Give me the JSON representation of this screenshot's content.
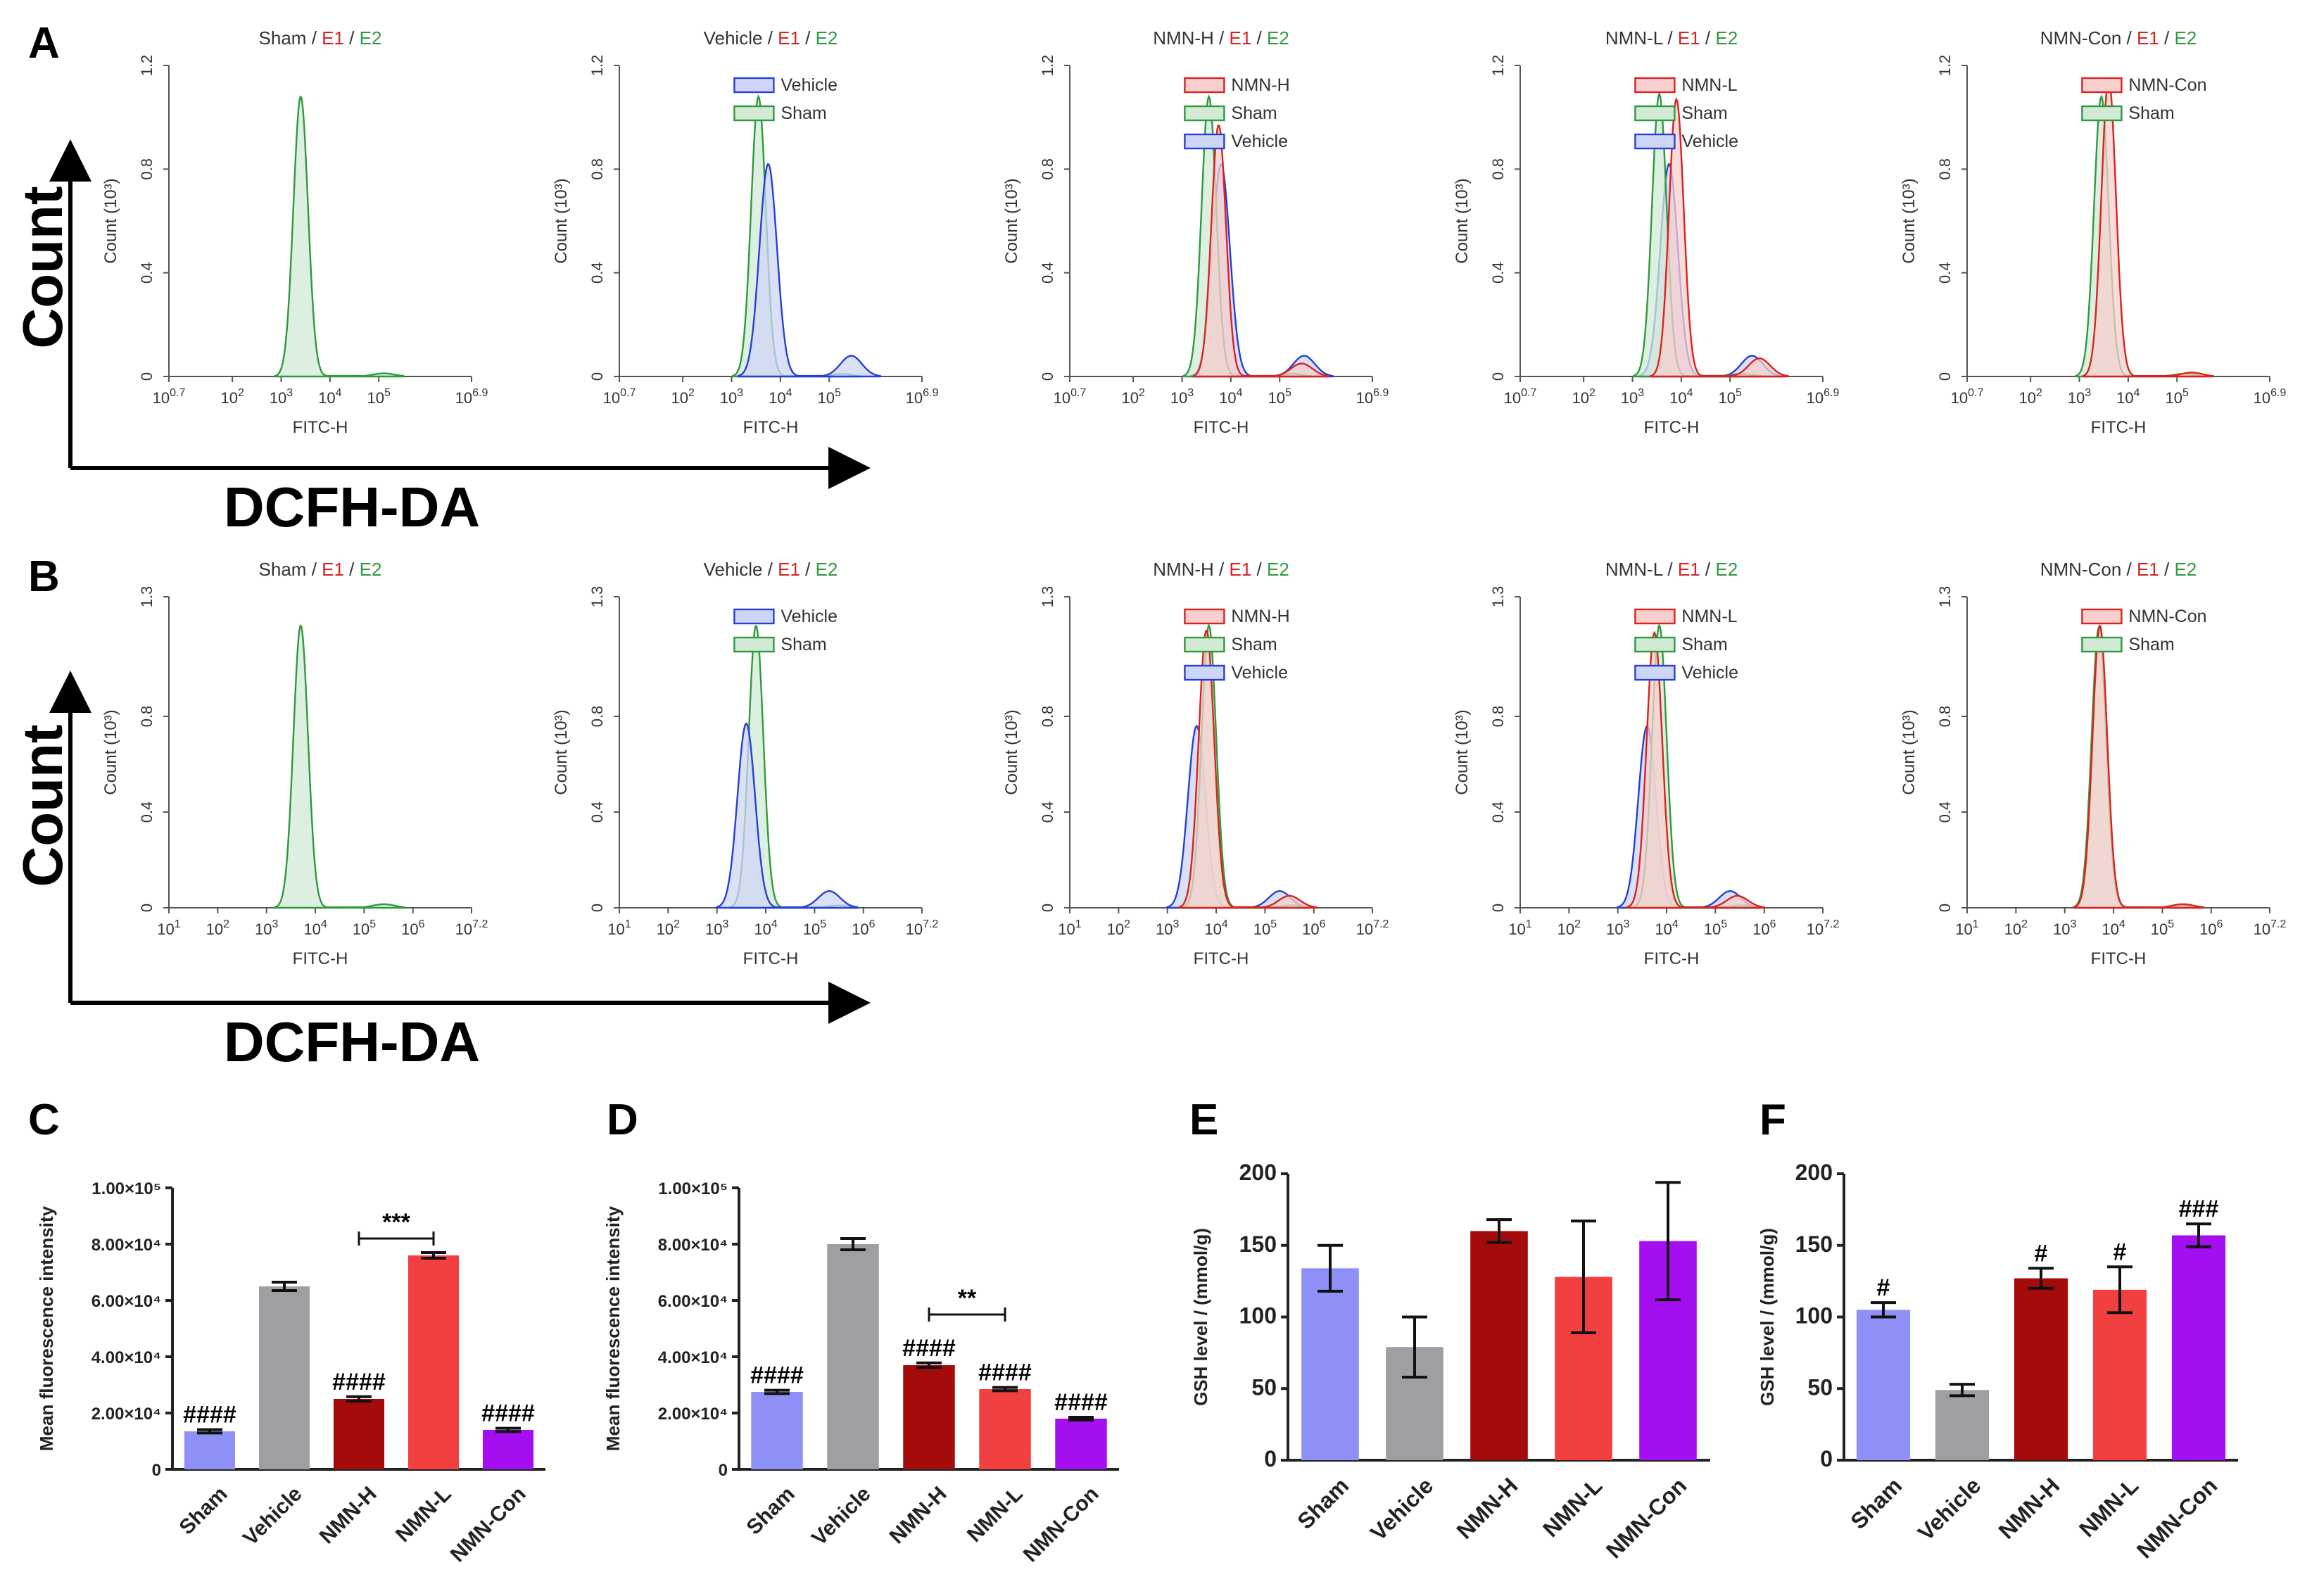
{
  "panel_labels": {
    "A": "A",
    "B": "B",
    "C": "C",
    "D": "D",
    "E": "E",
    "F": "F"
  },
  "axis_words": {
    "count": "Count",
    "dcfh": "DCFH-DA"
  },
  "colors": {
    "Sham": "#2f9a3e",
    "Vehicle": "#2540d9",
    "E1": "#d9231f",
    "E2": "#2f9a3e"
  },
  "chart_data": [
    {
      "type": "histogram-overlay",
      "row": "A",
      "xlabel": "FITC-H",
      "ylabel": "Count (10³)",
      "xticks": [
        {
          "exp": "0.7",
          "value": 0.7
        },
        {
          "exp": "2",
          "value": 2
        },
        {
          "exp": "3",
          "value": 3
        },
        {
          "exp": "4",
          "value": 4
        },
        {
          "exp": "5",
          "value": 5
        },
        {
          "exp": "6.9",
          "value": 6.9
        }
      ],
      "xlim": [
        0.7,
        6.9
      ],
      "yticks": [
        "0",
        "0.4",
        "0.8",
        "1.2"
      ],
      "ylim": [
        0,
        1.2
      ],
      "panels": [
        {
          "title": {
            "group": "Sham",
            "e1": "E1",
            "e2": "E2"
          },
          "legend": [],
          "series": [
            {
              "name": "Sham",
              "color": "#2f9a3e",
              "peak_log": 3.4,
              "peak": 1.08,
              "sigma": 0.15,
              "tail": 0.012
            }
          ]
        },
        {
          "title": {
            "group": "Vehicle",
            "e1": "E1",
            "e2": "E2"
          },
          "legend": [
            "Vehicle",
            "Sham"
          ],
          "series": [
            {
              "name": "Vehicle",
              "color": "#2540d9",
              "peak_log": 3.75,
              "peak": 0.82,
              "sigma": 0.18,
              "tail": 0.08
            },
            {
              "name": "Sham",
              "color": "#2f9a3e",
              "peak_log": 3.55,
              "peak": 1.08,
              "sigma": 0.15,
              "tail": 0.01
            }
          ]
        },
        {
          "title": {
            "group": "NMN-H",
            "e1": "E1",
            "e2": "E2"
          },
          "legend": [
            "NMN-H",
            "Sham",
            "Vehicle"
          ],
          "series": [
            {
              "name": "NMN-H",
              "color": "#d9231f",
              "peak_log": 3.75,
              "peak": 0.97,
              "sigma": 0.15,
              "tail": 0.05
            },
            {
              "name": "Sham",
              "color": "#2f9a3e",
              "peak_log": 3.55,
              "peak": 1.08,
              "sigma": 0.15,
              "tail": 0.01
            },
            {
              "name": "Vehicle",
              "color": "#2540d9",
              "peak_log": 3.8,
              "peak": 0.82,
              "sigma": 0.18,
              "tail": 0.08
            }
          ]
        },
        {
          "title": {
            "group": "NMN-L",
            "e1": "E1",
            "e2": "E2"
          },
          "legend": [
            "NMN-L",
            "Sham",
            "Vehicle"
          ],
          "series": [
            {
              "name": "NMN-L",
              "color": "#d9231f",
              "peak_log": 3.9,
              "peak": 1.07,
              "sigma": 0.15,
              "tail": 0.07
            },
            {
              "name": "Sham",
              "color": "#2f9a3e",
              "peak_log": 3.55,
              "peak": 1.09,
              "sigma": 0.15,
              "tail": 0.01
            },
            {
              "name": "Vehicle",
              "color": "#2540d9",
              "peak_log": 3.75,
              "peak": 0.82,
              "sigma": 0.18,
              "tail": 0.08
            }
          ]
        },
        {
          "title": {
            "group": "NMN-Con",
            "e1": "E1",
            "e2": "E2"
          },
          "legend": [
            "NMN-Con",
            "Sham"
          ],
          "series": [
            {
              "name": "NMN-Con",
              "color": "#d9231f",
              "peak_log": 3.6,
              "peak": 1.15,
              "sigma": 0.15,
              "tail": 0.015
            },
            {
              "name": "Sham",
              "color": "#2f9a3e",
              "peak_log": 3.45,
              "peak": 1.08,
              "sigma": 0.15,
              "tail": 0.01
            }
          ]
        }
      ]
    },
    {
      "type": "histogram-overlay",
      "row": "B",
      "xlabel": "FITC-H",
      "ylabel": "Count (10³)",
      "xticks": [
        {
          "exp": "1",
          "value": 1
        },
        {
          "exp": "2",
          "value": 2
        },
        {
          "exp": "3",
          "value": 3
        },
        {
          "exp": "4",
          "value": 4
        },
        {
          "exp": "5",
          "value": 5
        },
        {
          "exp": "6",
          "value": 6
        },
        {
          "exp": "7.2",
          "value": 7.2
        }
      ],
      "xlim": [
        1,
        7.2
      ],
      "yticks": [
        "0",
        "0.4",
        "0.8",
        "1.3"
      ],
      "ylim": [
        0,
        1.3
      ],
      "panels": [
        {
          "title": {
            "group": "Sham",
            "e1": "E1",
            "e2": "E2"
          },
          "legend": [],
          "series": [
            {
              "name": "Sham",
              "color": "#2f9a3e",
              "peak_log": 3.7,
              "peak": 1.18,
              "sigma": 0.15,
              "tail": 0.015
            }
          ]
        },
        {
          "title": {
            "group": "Vehicle",
            "e1": "E1",
            "e2": "E2"
          },
          "legend": [
            "Vehicle",
            "Sham"
          ],
          "series": [
            {
              "name": "Vehicle",
              "color": "#2540d9",
              "peak_log": 3.6,
              "peak": 0.77,
              "sigma": 0.18,
              "tail": 0.07
            },
            {
              "name": "Sham",
              "color": "#2f9a3e",
              "peak_log": 3.8,
              "peak": 1.18,
              "sigma": 0.15,
              "tail": 0.01
            }
          ]
        },
        {
          "title": {
            "group": "NMN-H",
            "e1": "E1",
            "e2": "E2"
          },
          "legend": [
            "NMN-H",
            "Sham",
            "Vehicle"
          ],
          "series": [
            {
              "name": "NMN-H",
              "color": "#d9231f",
              "peak_log": 3.8,
              "peak": 1.16,
              "sigma": 0.16,
              "tail": 0.05
            },
            {
              "name": "Sham",
              "color": "#2f9a3e",
              "peak_log": 3.85,
              "peak": 1.18,
              "sigma": 0.15,
              "tail": 0.01
            },
            {
              "name": "Vehicle",
              "color": "#2540d9",
              "peak_log": 3.6,
              "peak": 0.76,
              "sigma": 0.18,
              "tail": 0.07
            }
          ]
        },
        {
          "title": {
            "group": "NMN-L",
            "e1": "E1",
            "e2": "E2"
          },
          "legend": [
            "NMN-L",
            "Sham",
            "Vehicle"
          ],
          "series": [
            {
              "name": "NMN-L",
              "color": "#d9231f",
              "peak_log": 3.75,
              "peak": 1.15,
              "sigma": 0.16,
              "tail": 0.05
            },
            {
              "name": "Sham",
              "color": "#2f9a3e",
              "peak_log": 3.85,
              "peak": 1.18,
              "sigma": 0.15,
              "tail": 0.01
            },
            {
              "name": "Vehicle",
              "color": "#2540d9",
              "peak_log": 3.6,
              "peak": 0.76,
              "sigma": 0.18,
              "tail": 0.07
            }
          ]
        },
        {
          "title": {
            "group": "NMN-Con",
            "e1": "E1",
            "e2": "E2"
          },
          "legend": [
            "NMN-Con",
            "Sham"
          ],
          "series": [
            {
              "name": "NMN-Con",
              "color": "#d9231f",
              "peak_log": 3.72,
              "peak": 1.18,
              "sigma": 0.15,
              "tail": 0.015
            },
            {
              "name": "Sham",
              "color": "#2f9a3e",
              "peak_log": 3.7,
              "peak": 1.17,
              "sigma": 0.15,
              "tail": 0.01
            }
          ]
        }
      ]
    },
    {
      "type": "bar",
      "panel": "C",
      "categories": [
        "Sham",
        "Vehicle",
        "NMN-H",
        "NMN-L",
        "NMN-Con"
      ],
      "colors": [
        "#8f90f7",
        "#9e9ea3",
        "#a40b0b",
        "#f24040",
        "#a30ff0"
      ],
      "values": [
        13500,
        65000,
        25000,
        76000,
        14000
      ],
      "errors": [
        600,
        1500,
        800,
        1000,
        600
      ],
      "ylim": [
        0,
        100000
      ],
      "yticks": [
        {
          "value": 0,
          "label": "0"
        },
        {
          "value": 20000,
          "label": "2.00×10⁴"
        },
        {
          "value": 40000,
          "label": "4.00×10⁴"
        },
        {
          "value": 60000,
          "label": "6.00×10⁴"
        },
        {
          "value": 80000,
          "label": "8.00×10⁴"
        },
        {
          "value": 100000,
          "label": "1.00×10⁵"
        }
      ],
      "ylabel": "Mean fluorescence intensity",
      "annotations": [
        "####",
        "",
        "####",
        "",
        "####"
      ],
      "bracket": {
        "from": 2,
        "to": 3,
        "y": 82000,
        "label": "***"
      }
    },
    {
      "type": "bar",
      "panel": "D",
      "categories": [
        "Sham",
        "Vehicle",
        "NMN-H",
        "NMN-L",
        "NMN-Con"
      ],
      "colors": [
        "#8f90f7",
        "#9e9ea3",
        "#a40b0b",
        "#f24040",
        "#a30ff0"
      ],
      "values": [
        27500,
        80000,
        37000,
        28500,
        18000
      ],
      "errors": [
        600,
        2000,
        800,
        600,
        500
      ],
      "ylim": [
        0,
        100000
      ],
      "yticks": [
        {
          "value": 0,
          "label": "0"
        },
        {
          "value": 20000,
          "label": "2.00×10⁴"
        },
        {
          "value": 40000,
          "label": "4.00×10⁴"
        },
        {
          "value": 60000,
          "label": "6.00×10⁴"
        },
        {
          "value": 80000,
          "label": "8.00×10⁴"
        },
        {
          "value": 100000,
          "label": "1.00×10⁵"
        }
      ],
      "ylabel": "Mean fluorescence intensity",
      "annotations": [
        "####",
        "",
        "####",
        "####",
        "####"
      ],
      "bracket": {
        "from": 2,
        "to": 3,
        "y": 55000,
        "label": "**"
      }
    },
    {
      "type": "bar",
      "panel": "E",
      "categories": [
        "Sham",
        "Vehicle",
        "NMN-H",
        "NMN-L",
        "NMN-Con"
      ],
      "colors": [
        "#8f90f7",
        "#9e9ea3",
        "#a40b0b",
        "#f24040",
        "#a30ff0"
      ],
      "values": [
        134,
        79,
        160,
        128,
        153
      ],
      "errors": [
        16,
        21,
        8,
        39,
        41
      ],
      "ylim": [
        0,
        200
      ],
      "yticks": [
        {
          "value": 0,
          "label": "0"
        },
        {
          "value": 50,
          "label": "50"
        },
        {
          "value": 100,
          "label": "100"
        },
        {
          "value": 150,
          "label": "150"
        },
        {
          "value": 200,
          "label": "200"
        }
      ],
      "ylabel": "GSH level / (mmol/g)",
      "annotations": [
        "",
        "",
        "",
        "",
        ""
      ]
    },
    {
      "type": "bar",
      "panel": "F",
      "categories": [
        "Sham",
        "Vehicle",
        "NMN-H",
        "NMN-L",
        "NMN-Con"
      ],
      "colors": [
        "#8f90f7",
        "#9e9ea3",
        "#a40b0b",
        "#f24040",
        "#a30ff0"
      ],
      "values": [
        105,
        49,
        127,
        119,
        157
      ],
      "errors": [
        5,
        4,
        7,
        16,
        8
      ],
      "ylim": [
        0,
        200
      ],
      "yticks": [
        {
          "value": 0,
          "label": "0"
        },
        {
          "value": 50,
          "label": "50"
        },
        {
          "value": 100,
          "label": "100"
        },
        {
          "value": 150,
          "label": "150"
        },
        {
          "value": 200,
          "label": "200"
        }
      ],
      "ylabel": "GSH level / (mmol/g)",
      "annotations": [
        "#",
        "",
        "#",
        "#",
        "###"
      ]
    }
  ]
}
